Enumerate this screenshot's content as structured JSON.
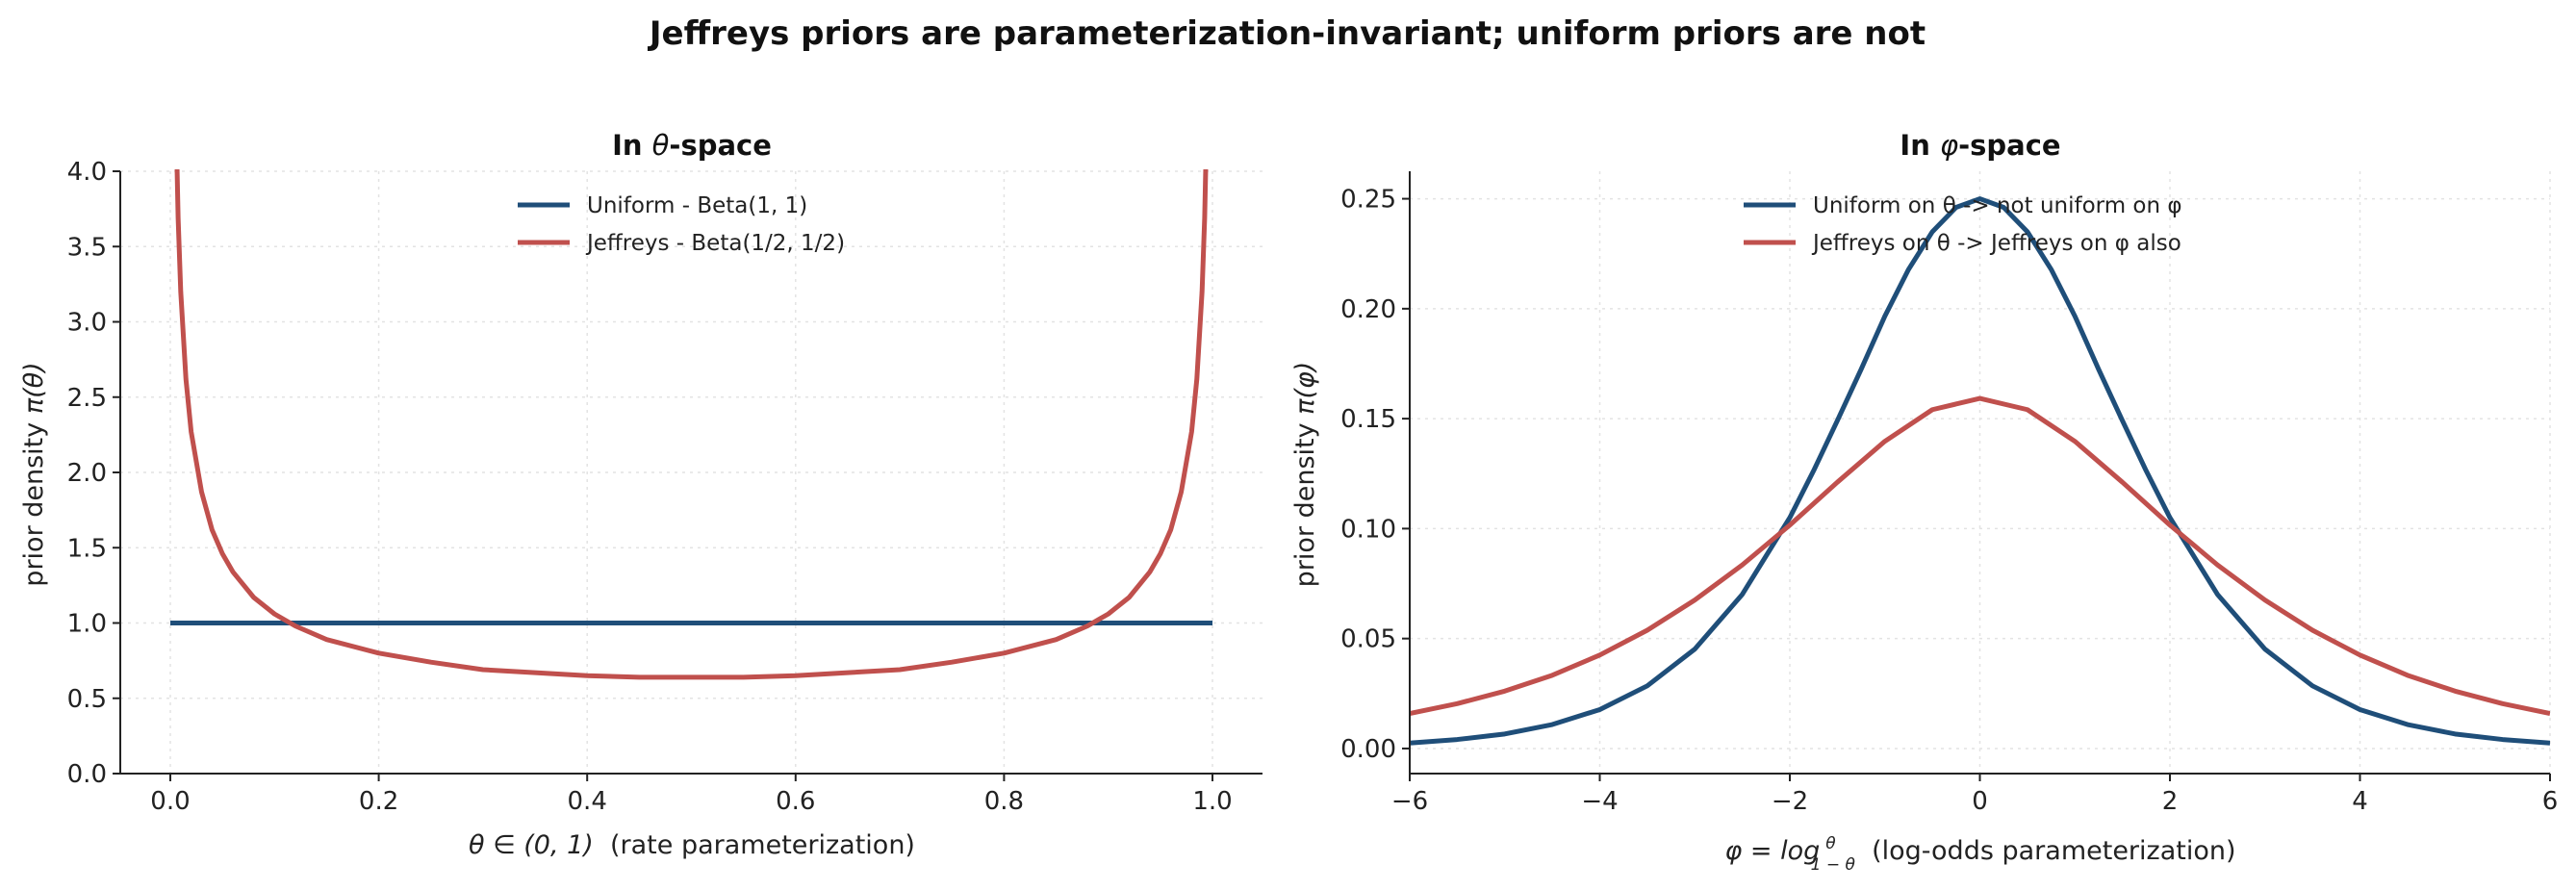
{
  "suptitle": "Jeffreys priors are parameterization-invariant; uniform priors are not",
  "colors": {
    "uniform": "#1f4e79",
    "jeffreys": "#c0504d"
  },
  "chart_data": [
    {
      "type": "line",
      "title_prefix": "In ",
      "title_symbol": "θ",
      "title_suffix": "-space",
      "xlabel_math": "θ ∈ (0, 1)",
      "xlabel_text": "  (rate parameterization)",
      "ylabel_prefix": "prior density ",
      "ylabel_math": "π(θ)",
      "xlim": [
        -0.048,
        1.048
      ],
      "ylim": [
        0,
        4
      ],
      "xticks": [
        0,
        0.2,
        0.4,
        0.6,
        0.8,
        1.0
      ],
      "xtick_labels": [
        "0.0",
        "0.2",
        "0.4",
        "0.6",
        "0.8",
        "1.0"
      ],
      "yticks": [
        0,
        0.5,
        1.0,
        1.5,
        2.0,
        2.5,
        3.0,
        3.5,
        4.0
      ],
      "ytick_labels": [
        "0.0",
        "0.5",
        "1.0",
        "1.5",
        "2.0",
        "2.5",
        "3.0",
        "3.5",
        "4.0"
      ],
      "grid": true,
      "legend_position": "upper center",
      "series": [
        {
          "name": "Uniform - Beta(1, 1)",
          "color": "#1f4e79",
          "x": [
            0.0,
            1.0
          ],
          "y": [
            1.0,
            1.0
          ]
        },
        {
          "name": "Jeffreys - Beta(1/2, 1/2)",
          "color": "#c0504d",
          "x": [
            0.005,
            0.0075,
            0.01,
            0.015,
            0.02,
            0.03,
            0.04,
            0.05,
            0.06,
            0.08,
            0.1,
            0.12,
            0.15,
            0.2,
            0.25,
            0.3,
            0.35,
            0.4,
            0.45,
            0.5,
            0.55,
            0.6,
            0.65,
            0.7,
            0.75,
            0.8,
            0.85,
            0.88,
            0.9,
            0.92,
            0.94,
            0.95,
            0.96,
            0.97,
            0.98,
            0.985,
            0.99,
            0.9925,
            0.995
          ],
          "y": [
            4.5,
            3.69,
            3.2,
            2.62,
            2.27,
            1.87,
            1.62,
            1.46,
            1.34,
            1.17,
            1.06,
            0.98,
            0.89,
            0.8,
            0.74,
            0.69,
            0.67,
            0.65,
            0.64,
            0.64,
            0.64,
            0.65,
            0.67,
            0.69,
            0.74,
            0.8,
            0.89,
            0.98,
            1.06,
            1.17,
            1.34,
            1.46,
            1.62,
            1.87,
            2.27,
            2.62,
            3.2,
            3.69,
            4.5
          ]
        }
      ]
    },
    {
      "type": "line",
      "title_prefix": "In ",
      "title_symbol": "φ",
      "title_suffix": "-space",
      "xlabel_math": "φ = log",
      "xlabel_frac_num": "θ",
      "xlabel_frac_den": "1 − θ",
      "xlabel_text": "  (log-odds parameterization)",
      "ylabel_prefix": "prior density ",
      "ylabel_math": "π(φ)",
      "xlim": [
        -6,
        6
      ],
      "ylim": [
        -0.0114,
        0.2625
      ],
      "xticks": [
        -6,
        -4,
        -2,
        0,
        2,
        4,
        6
      ],
      "xtick_labels": [
        "−6",
        "−4",
        "−2",
        "0",
        "2",
        "4",
        "6"
      ],
      "yticks": [
        0,
        0.05,
        0.1,
        0.15,
        0.2,
        0.25
      ],
      "ytick_labels": [
        "0.00",
        "0.05",
        "0.10",
        "0.15",
        "0.20",
        "0.25"
      ],
      "grid": true,
      "legend_position": "upper center",
      "series": [
        {
          "name": "Uniform on θ -> not uniform on φ",
          "color": "#1f4e79",
          "x": [
            -6,
            -5.5,
            -5,
            -4.5,
            -4,
            -3.5,
            -3,
            -2.5,
            -2,
            -1.75,
            -1.5,
            -1.25,
            -1,
            -0.75,
            -0.5,
            -0.25,
            0,
            0.25,
            0.5,
            0.75,
            1,
            1.25,
            1.5,
            1.75,
            2,
            2.5,
            3,
            3.5,
            4,
            4.5,
            5,
            5.5,
            6
          ],
          "y": [
            0.0025,
            0.0041,
            0.0066,
            0.0109,
            0.0177,
            0.0285,
            0.0452,
            0.0701,
            0.105,
            0.1263,
            0.1491,
            0.1724,
            0.1966,
            0.2179,
            0.235,
            0.2461,
            0.25,
            0.2461,
            0.235,
            0.2179,
            0.1966,
            0.1724,
            0.1491,
            0.1263,
            0.105,
            0.0701,
            0.0452,
            0.0285,
            0.0177,
            0.0109,
            0.0066,
            0.0041,
            0.0025
          ]
        },
        {
          "name": "Jeffreys on θ -> Jeffreys on φ also",
          "color": "#c0504d",
          "x": [
            -6,
            -5.5,
            -5,
            -4.5,
            -4,
            -3.5,
            -3,
            -2.5,
            -2,
            -1.5,
            -1,
            -0.5,
            0,
            0.5,
            1,
            1.5,
            2,
            2.5,
            3,
            3.5,
            4,
            4.5,
            5,
            5.5,
            6
          ],
          "y": [
            0.0159,
            0.0204,
            0.0261,
            0.0333,
            0.0425,
            0.0538,
            0.0675,
            0.0835,
            0.1016,
            0.1211,
            0.1397,
            0.1541,
            0.1592,
            0.1541,
            0.1397,
            0.1211,
            0.1016,
            0.0835,
            0.0675,
            0.0538,
            0.0425,
            0.0333,
            0.0261,
            0.0204,
            0.0159
          ]
        }
      ]
    }
  ]
}
